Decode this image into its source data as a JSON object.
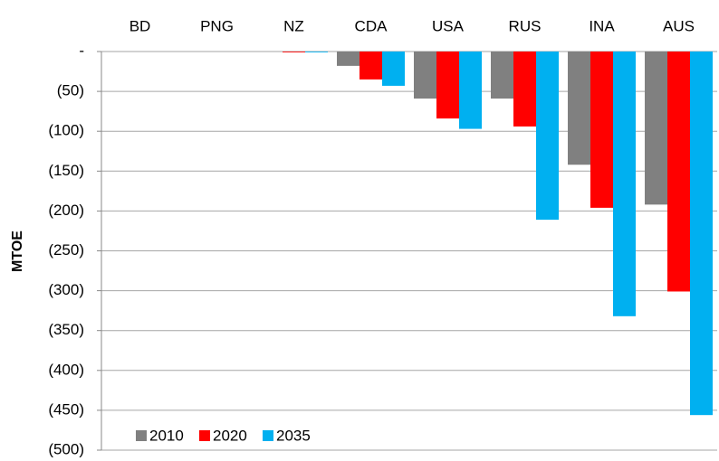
{
  "chart_data": {
    "type": "bar",
    "y_label": "MTOE",
    "categories": [
      "BD",
      "PNG",
      "NZ",
      "CDA",
      "USA",
      "RUS",
      "INA",
      "AUS"
    ],
    "series": [
      {
        "name": "2010",
        "color": "#808080",
        "values": [
          0,
          0,
          0,
          -18,
          -59,
          -59,
          -142,
          -192
        ]
      },
      {
        "name": "2020",
        "color": "#ff0000",
        "values": [
          0,
          0,
          -1,
          -35,
          -84,
          -94,
          -196,
          -301
        ]
      },
      {
        "name": "2035",
        "color": "#00b0f0",
        "values": [
          0,
          0,
          -1,
          -43,
          -97,
          -211,
          -332,
          -456
        ]
      }
    ],
    "ylim": [
      -500,
      0
    ],
    "yticks": [
      {
        "value": 0,
        "label": "-"
      },
      {
        "value": -50,
        "label": "(50)"
      },
      {
        "value": -100,
        "label": "(100)"
      },
      {
        "value": -150,
        "label": "(150)"
      },
      {
        "value": -200,
        "label": "(200)"
      },
      {
        "value": -250,
        "label": "(250)"
      },
      {
        "value": -300,
        "label": "(300)"
      },
      {
        "value": -350,
        "label": "(350)"
      },
      {
        "value": -400,
        "label": "(400)"
      },
      {
        "value": -450,
        "label": "(450)"
      },
      {
        "value": -500,
        "label": "(500)"
      }
    ],
    "grid": true,
    "legend": "lower left"
  }
}
